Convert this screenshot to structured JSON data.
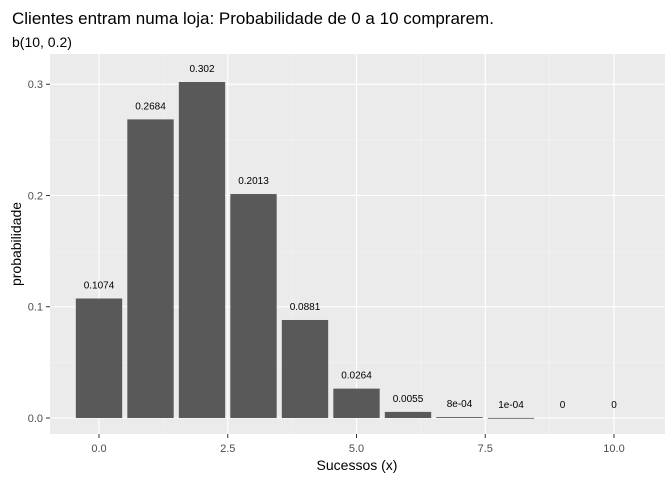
{
  "chart_data": {
    "type": "bar",
    "title": "Clientes entram numa loja: Probabilidade de 0 a 10 comprarem.",
    "subtitle": "b(10, 0.2)",
    "xlabel": "Sucessos (x)",
    "ylabel": "probabilidade",
    "x": [
      0,
      1,
      2,
      3,
      4,
      5,
      6,
      7,
      8,
      9,
      10
    ],
    "values": [
      0.1074,
      0.2684,
      0.302,
      0.2013,
      0.0881,
      0.0264,
      0.0055,
      0.0008,
      0.0001,
      0,
      0
    ],
    "labels": [
      "0.1074",
      "0.2684",
      "0.302",
      "0.2013",
      "0.0881",
      "0.0264",
      "0.0055",
      "8e-04",
      "1e-04",
      "0",
      "0"
    ],
    "x_ticks": [
      0,
      2.5,
      5,
      7.5,
      10
    ],
    "x_tick_labels": [
      "0.0",
      "2.5",
      "5.0",
      "7.5",
      "10.0"
    ],
    "y_ticks": [
      0,
      0.1,
      0.2,
      0.3
    ],
    "y_tick_labels": [
      "0.0",
      "0.1",
      "0.2",
      "0.3"
    ],
    "xlim": [
      -0.5,
      10.5
    ],
    "ylim": [
      0,
      0.302
    ],
    "grid": true,
    "legend": "none",
    "colors": {
      "bar": "#595959",
      "panel": "#ebebeb",
      "grid_major": "#ffffff",
      "grid_minor": "#f5f5f5"
    }
  }
}
